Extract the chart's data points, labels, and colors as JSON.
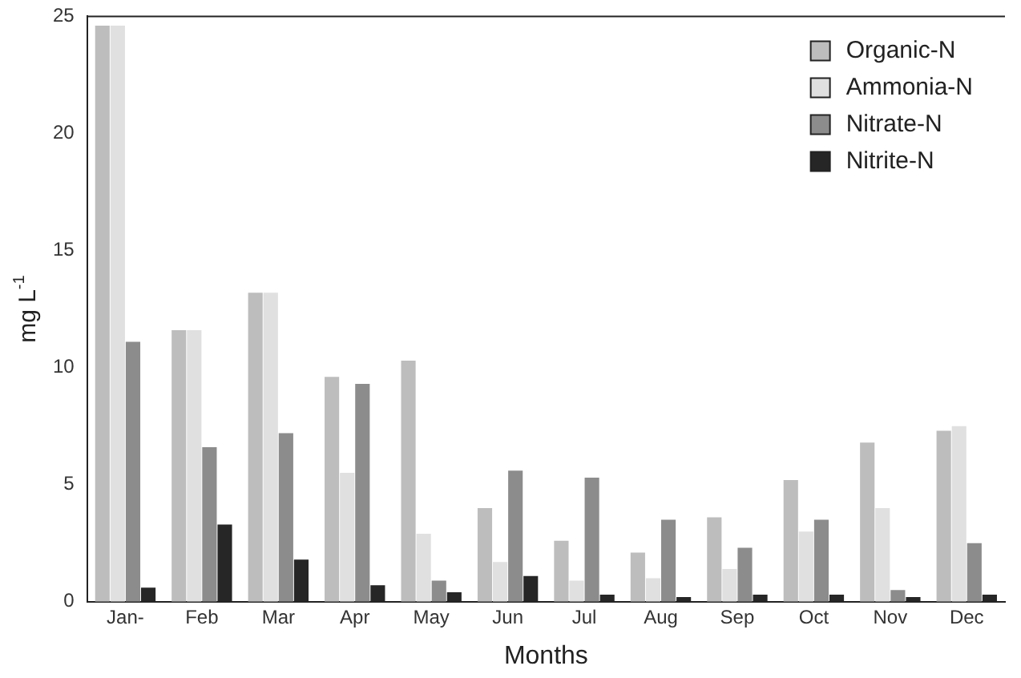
{
  "chart_data": {
    "type": "bar",
    "xlabel": "Months",
    "ylabel": "mg L$^{-1}$",
    "categories": [
      "Jan-",
      "Feb",
      "Mar",
      "Apr",
      "May",
      "Jun",
      "Jul",
      "Aug",
      "Sep",
      "Oct",
      "Nov",
      "Dec"
    ],
    "series": [
      {
        "name": "Organic-N",
        "color": "#bdbdbd",
        "values": [
          24.6,
          11.6,
          13.2,
          9.6,
          10.3,
          4.0,
          2.6,
          2.1,
          3.6,
          5.2,
          6.8,
          7.3
        ]
      },
      {
        "name": "Ammonia-N",
        "color": "#e0e0e0",
        "values": [
          24.6,
          11.6,
          13.2,
          5.5,
          2.9,
          1.7,
          0.9,
          1.0,
          1.4,
          3.0,
          4.0,
          7.5
        ]
      },
      {
        "name": "Nitrate-N",
        "color": "#8c8c8c",
        "values": [
          11.1,
          6.6,
          7.2,
          9.3,
          0.9,
          5.6,
          5.3,
          3.5,
          2.3,
          3.5,
          0.5,
          2.5
        ]
      },
      {
        "name": "Nitrite-N",
        "color": "#262626",
        "values": [
          0.6,
          3.3,
          1.8,
          0.7,
          0.4,
          1.1,
          0.3,
          0.2,
          0.3,
          0.3,
          0.2,
          0.3
        ]
      }
    ],
    "ylim": [
      0,
      25
    ],
    "yticks": [
      0,
      5,
      10,
      15,
      20,
      25
    ],
    "grid": false,
    "legend": "top right"
  }
}
